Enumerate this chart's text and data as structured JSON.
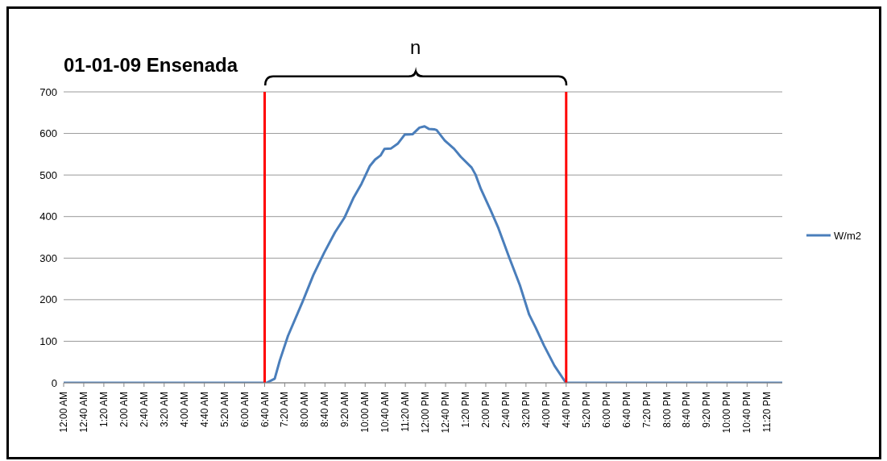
{
  "chart_data": {
    "type": "line",
    "title": "01-01-09 Ensenada",
    "annotations": [
      "n"
    ],
    "series": [
      {
        "name": "W/m2",
        "color": "#4a7ebb",
        "x": [
          0,
          6.67,
          6.73,
          7.0,
          7.17,
          7.44,
          7.93,
          8.28,
          8.64,
          9.0,
          9.31,
          9.62,
          9.88,
          10.15,
          10.33,
          10.51,
          10.64,
          10.86,
          11.09,
          11.31,
          11.57,
          11.8,
          11.97,
          12.11,
          12.29,
          12.37,
          12.64,
          12.95,
          13.17,
          13.53,
          13.66,
          13.84,
          14.15,
          14.42,
          14.77,
          15.13,
          15.44,
          15.66,
          15.93,
          16.28,
          16.64,
          16.67,
          23.83
        ],
        "values": [
          0,
          0,
          0,
          10,
          54,
          113,
          196,
          259,
          313,
          362,
          397,
          446,
          479,
          521,
          537,
          547,
          563,
          564,
          576,
          597,
          598,
          614,
          617,
          611,
          610,
          608,
          583,
          563,
          544,
          518,
          501,
          466,
          417,
          372,
          303,
          235,
          164,
          132,
          90,
          41,
          2,
          0,
          0
        ]
      }
    ],
    "xlim": [
      0,
      23.8333
    ],
    "xticks": [
      {
        "value": 0,
        "label": "12:00 AM"
      },
      {
        "value": 0.6667,
        "label": "12:40 AM"
      },
      {
        "value": 1.3333,
        "label": "1:20 AM"
      },
      {
        "value": 2,
        "label": "2:00 AM"
      },
      {
        "value": 2.6667,
        "label": "2:40 AM"
      },
      {
        "value": 3.3333,
        "label": "3:20 AM"
      },
      {
        "value": 4,
        "label": "4:00 AM"
      },
      {
        "value": 4.6667,
        "label": "4:40 AM"
      },
      {
        "value": 5.3333,
        "label": "5:20 AM"
      },
      {
        "value": 6,
        "label": "6:00 AM"
      },
      {
        "value": 6.6667,
        "label": "6:40 AM"
      },
      {
        "value": 7.3333,
        "label": "7:20 AM"
      },
      {
        "value": 8,
        "label": "8:00 AM"
      },
      {
        "value": 8.6667,
        "label": "8:40 AM"
      },
      {
        "value": 9.3333,
        "label": "9:20 AM"
      },
      {
        "value": 10,
        "label": "10:00 AM"
      },
      {
        "value": 10.6667,
        "label": "10:40 AM"
      },
      {
        "value": 11.3333,
        "label": "11:20 AM"
      },
      {
        "value": 12,
        "label": "12:00 PM"
      },
      {
        "value": 12.6667,
        "label": "12:40 PM"
      },
      {
        "value": 13.3333,
        "label": "1:20 PM"
      },
      {
        "value": 14,
        "label": "2:00 PM"
      },
      {
        "value": 14.6667,
        "label": "2:40 PM"
      },
      {
        "value": 15.3333,
        "label": "3:20 PM"
      },
      {
        "value": 16,
        "label": "4:00 PM"
      },
      {
        "value": 16.6667,
        "label": "4:40 PM"
      },
      {
        "value": 17.3333,
        "label": "5:20 PM"
      },
      {
        "value": 18,
        "label": "6:00 PM"
      },
      {
        "value": 18.6667,
        "label": "6:40 PM"
      },
      {
        "value": 19.3333,
        "label": "7:20 PM"
      },
      {
        "value": 20,
        "label": "8:00 PM"
      },
      {
        "value": 20.6667,
        "label": "8:40 PM"
      },
      {
        "value": 21.3333,
        "label": "9:20 PM"
      },
      {
        "value": 22,
        "label": "10:00 PM"
      },
      {
        "value": 22.6667,
        "label": "10:40 PM"
      },
      {
        "value": 23.3333,
        "label": "11:20 PM"
      }
    ],
    "ylim": [
      0,
      700
    ],
    "yticks": [
      0,
      100,
      200,
      300,
      400,
      500,
      600,
      700
    ],
    "ref_lines": [
      {
        "axis": "x",
        "value": 6.6667,
        "color": "#ff0000"
      },
      {
        "axis": "x",
        "value": 16.6667,
        "color": "#ff0000"
      }
    ],
    "grid": "y",
    "legend": "right",
    "marker": "none",
    "line_style": "solid"
  }
}
